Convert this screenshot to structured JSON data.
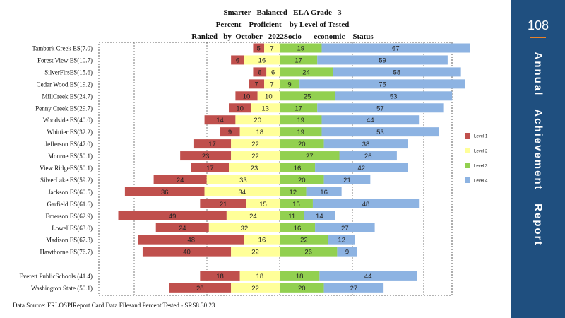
{
  "title_lines": [
    "Smarter   Balanced   ELA Grade   3",
    "Percent    Proficient    by Level of Tested",
    "Ranked   by  October   2022Socio    - economic    Status"
  ],
  "source_note": "Data Source: FRLOSPIReport Card Data Filesand Percent  Tested - SRS8.30.23",
  "side_panel": {
    "page_number": "108",
    "title": "Annual   Achievement   Report"
  },
  "colors": {
    "level_1": "#c0504d",
    "level_2": "#ffff99",
    "level_3": "#92d050",
    "level_4": "#8db3e2",
    "panel": "#1f4f7f",
    "panel_rule": "#e8822a"
  },
  "chart_data": {
    "type": "bar",
    "orientation": "horizontal diverging stacked",
    "title": "Smarter Balanced ELA Grade 3 Percent Proficient by Level of Tested Ranked by October 2022Socio - economic Status",
    "legend_position": "right",
    "grid": true,
    "series": [
      {
        "name": "Level 1",
        "values": [
          5,
          6,
          6,
          7,
          10,
          10,
          14,
          9,
          17,
          23,
          17,
          24,
          36,
          21,
          49,
          24,
          48,
          40,
          18,
          28
        ]
      },
      {
        "name": "Level 2",
        "values": [
          7,
          16,
          6,
          7,
          10,
          13,
          20,
          18,
          22,
          22,
          23,
          33,
          34,
          15,
          24,
          32,
          16,
          22,
          18,
          22
        ]
      },
      {
        "name": "Level 3",
        "values": [
          19,
          17,
          24,
          9,
          25,
          17,
          19,
          19,
          20,
          27,
          16,
          20,
          12,
          15,
          11,
          16,
          22,
          26,
          18,
          20
        ]
      },
      {
        "name": "Level 4",
        "values": [
          67,
          59,
          58,
          75,
          53,
          57,
          44,
          53,
          38,
          26,
          42,
          21,
          16,
          48,
          14,
          27,
          12,
          9,
          44,
          27
        ]
      }
    ],
    "categories": [
      "Tambark Creek ES(7.0)",
      "Forest View ES(10.7)",
      "SilverFirsES(15.6)",
      "Cedar Wood ES(19.2)",
      "MillCreek ES(24.7)",
      "Penny Creek ES(29.7)",
      "Woodside ES(40.0)",
      "Whittier ES(32.2)",
      "Jefferson   ES(47.0)",
      "Monroe ES(50.1)",
      "View RidgeES(50.1)",
      "SilverLake ES(59.2)",
      "Jackson ES(60.5)",
      "Garfield ES(61.6)",
      "Emerson ES(62.9)",
      "LowellES(63.0)",
      "Madison ES(67.3)",
      "Hawthorne  ES(76.7)",
      "Everett  PublicSchools (41.4)",
      "Washington State (50.1)"
    ],
    "group_break_before_index": 18
  }
}
